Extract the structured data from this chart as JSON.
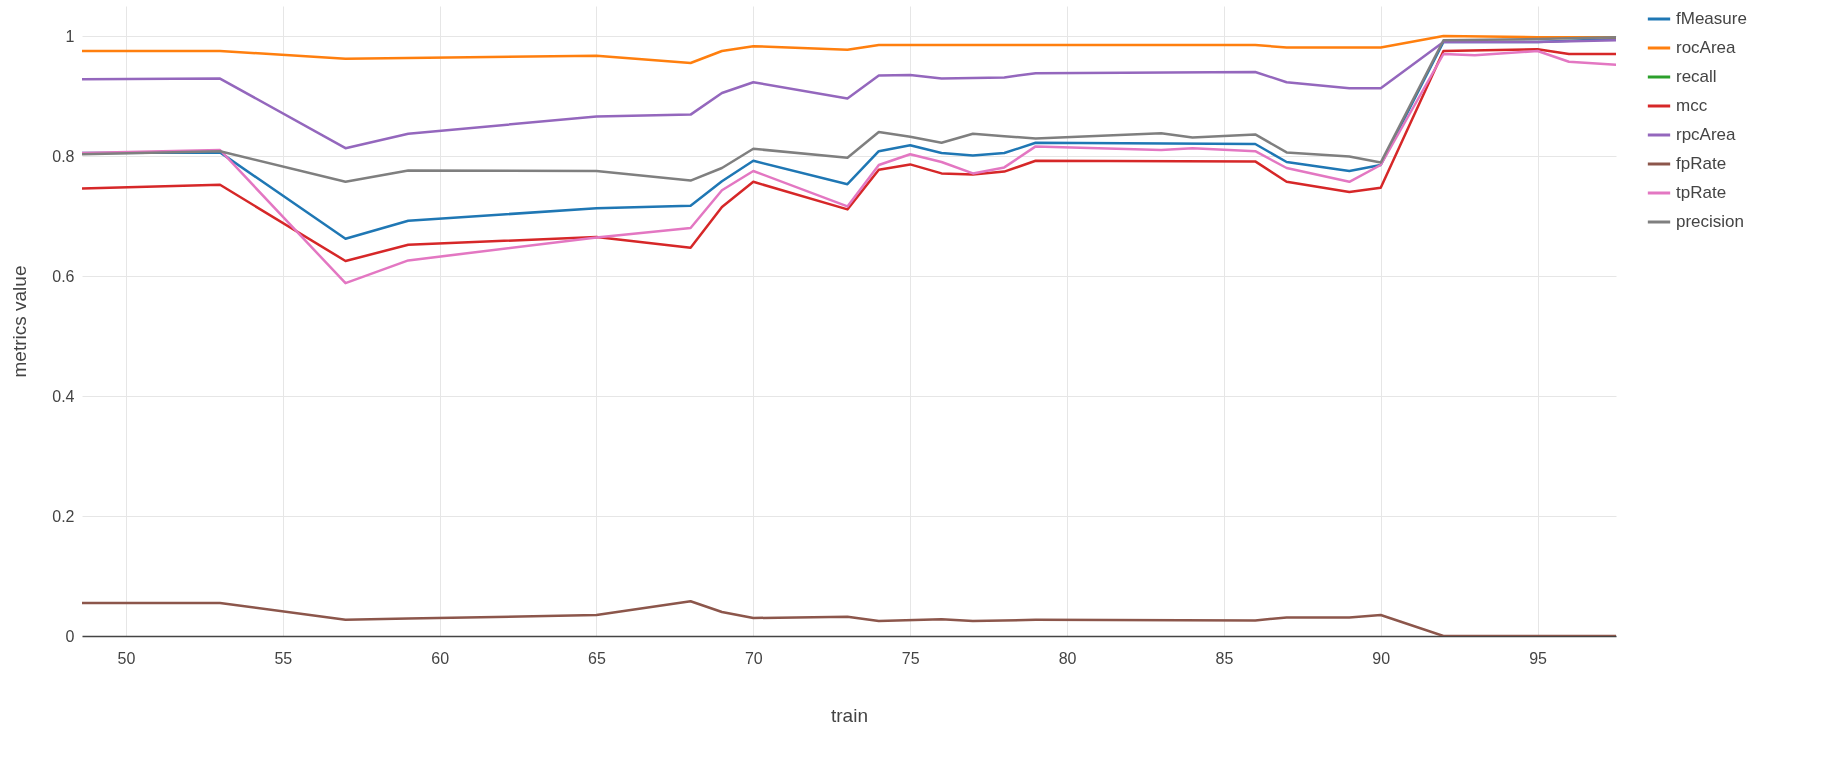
{
  "chart_data": {
    "type": "line",
    "xlabel": "train",
    "ylabel": "metrics value",
    "xlim": [
      48.6,
      97.5
    ],
    "ylim": [
      0,
      1.05
    ],
    "xticks": [
      50,
      55,
      60,
      65,
      70,
      75,
      80,
      85,
      90,
      95
    ],
    "yticks": [
      0,
      0.2,
      0.4,
      0.6,
      0.8,
      1
    ],
    "grid": true,
    "legend": "top right",
    "series": [
      {
        "name": "fMeasure",
        "color": "#1f77b4",
        "x": [
          48.6,
          53,
          57,
          59,
          65,
          68,
          69,
          70,
          73,
          74,
          75,
          76,
          77,
          78,
          79,
          86,
          87,
          89,
          90,
          92,
          95,
          97.5
        ],
        "values": [
          0.805,
          0.806,
          0.662,
          0.692,
          0.713,
          0.717,
          0.758,
          0.792,
          0.753,
          0.808,
          0.818,
          0.805,
          0.801,
          0.805,
          0.822,
          0.82,
          0.79,
          0.775,
          0.785,
          0.99,
          0.99,
          0.995
        ]
      },
      {
        "name": "rocArea",
        "color": "#ff7f0e",
        "x": [
          48.6,
          53,
          57,
          65,
          68,
          69,
          70,
          73,
          74,
          86,
          87,
          90,
          92,
          95,
          97.5
        ],
        "values": [
          0.975,
          0.975,
          0.962,
          0.967,
          0.955,
          0.975,
          0.983,
          0.977,
          0.985,
          0.985,
          0.981,
          0.981,
          1.0,
          0.998,
          0.998
        ]
      },
      {
        "name": "recall",
        "color": "#2ca02c"
      },
      {
        "name": "mcc",
        "color": "#d62728",
        "x": [
          48.6,
          53,
          57,
          59,
          65,
          68,
          69,
          70,
          73,
          74,
          75,
          76,
          77,
          78,
          79,
          86,
          87,
          89,
          90,
          92,
          95,
          96,
          97.5
        ],
        "values": [
          0.746,
          0.752,
          0.625,
          0.652,
          0.665,
          0.647,
          0.715,
          0.757,
          0.711,
          0.777,
          0.786,
          0.771,
          0.769,
          0.774,
          0.792,
          0.791,
          0.757,
          0.74,
          0.747,
          0.975,
          0.978,
          0.97,
          0.97
        ]
      },
      {
        "name": "rpcArea",
        "color": "#9467bd",
        "x": [
          48.6,
          53,
          57,
          59,
          65,
          68,
          69,
          70,
          73,
          74,
          75,
          76,
          77,
          78,
          79,
          86,
          87,
          89,
          90,
          92,
          95,
          97.5
        ],
        "values": [
          0.928,
          0.929,
          0.813,
          0.837,
          0.866,
          0.869,
          0.905,
          0.923,
          0.896,
          0.934,
          0.935,
          0.929,
          0.93,
          0.931,
          0.938,
          0.94,
          0.923,
          0.913,
          0.913,
          0.99,
          0.99,
          0.993
        ]
      },
      {
        "name": "fpRate",
        "color": "#8c564b",
        "x": [
          48.6,
          53,
          57,
          59,
          65,
          68,
          69,
          70,
          73,
          74,
          76,
          77,
          79,
          86,
          87,
          89,
          90,
          92,
          97.5
        ],
        "values": [
          0.055,
          0.055,
          0.027,
          0.029,
          0.035,
          0.058,
          0.04,
          0.03,
          0.032,
          0.025,
          0.028,
          0.025,
          0.027,
          0.026,
          0.031,
          0.031,
          0.035,
          0,
          0
        ]
      },
      {
        "name": "tpRate",
        "color": "#e377c2",
        "x": [
          48.6,
          53,
          57,
          59,
          65,
          68,
          69,
          70,
          73,
          74,
          75,
          76,
          77,
          78,
          79,
          83,
          84,
          86,
          87,
          89,
          90,
          92,
          93,
          95,
          96,
          97.5
        ],
        "values": [
          0.805,
          0.81,
          0.588,
          0.626,
          0.664,
          0.68,
          0.743,
          0.775,
          0.716,
          0.785,
          0.803,
          0.79,
          0.771,
          0.781,
          0.816,
          0.81,
          0.813,
          0.808,
          0.78,
          0.757,
          0.785,
          0.97,
          0.968,
          0.975,
          0.957,
          0.952
        ]
      },
      {
        "name": "precision",
        "color": "#7f7f7f",
        "x": [
          48.6,
          53,
          57,
          59,
          65,
          68,
          69,
          70,
          73,
          74,
          75,
          76,
          77,
          78,
          79,
          83,
          84,
          86,
          87,
          89,
          90,
          92,
          95,
          97.5
        ],
        "values": [
          0.803,
          0.808,
          0.757,
          0.776,
          0.775,
          0.759,
          0.78,
          0.812,
          0.797,
          0.84,
          0.832,
          0.822,
          0.837,
          0.833,
          0.829,
          0.838,
          0.831,
          0.836,
          0.806,
          0.799,
          0.789,
          0.993,
          0.995,
          0.998
        ]
      }
    ]
  }
}
